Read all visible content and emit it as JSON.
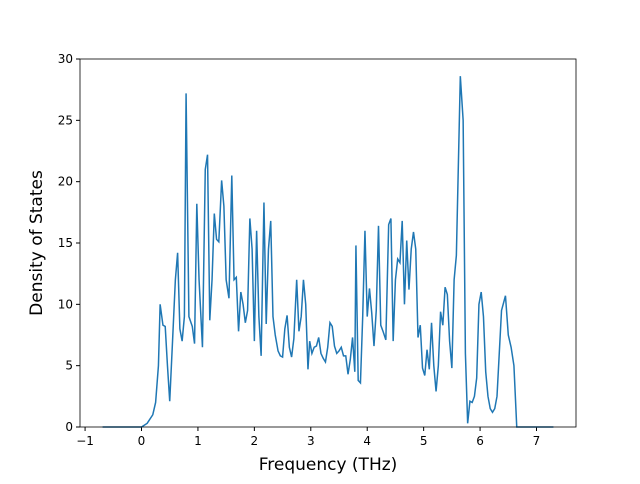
{
  "chart_data": {
    "type": "line",
    "xlabel": "Frequency (THz)",
    "ylabel": "Density of States",
    "x": [
      -0.69,
      -0.3,
      0.0,
      0.1,
      0.2,
      0.25,
      0.3,
      0.33,
      0.38,
      0.42,
      0.46,
      0.5,
      0.55,
      0.6,
      0.64,
      0.68,
      0.72,
      0.76,
      0.79,
      0.84,
      0.9,
      0.94,
      0.98,
      1.02,
      1.08,
      1.13,
      1.17,
      1.21,
      1.25,
      1.29,
      1.33,
      1.37,
      1.42,
      1.46,
      1.5,
      1.55,
      1.6,
      1.64,
      1.68,
      1.72,
      1.76,
      1.8,
      1.84,
      1.88,
      1.92,
      1.96,
      2.0,
      2.04,
      2.08,
      2.12,
      2.17,
      2.21,
      2.25,
      2.29,
      2.33,
      2.37,
      2.42,
      2.46,
      2.5,
      2.54,
      2.58,
      2.62,
      2.66,
      2.7,
      2.75,
      2.79,
      2.83,
      2.87,
      2.91,
      2.95,
      2.98,
      3.02,
      3.06,
      3.1,
      3.14,
      3.18,
      3.22,
      3.26,
      3.3,
      3.34,
      3.38,
      3.42,
      3.46,
      3.5,
      3.54,
      3.58,
      3.62,
      3.66,
      3.7,
      3.74,
      3.78,
      3.8,
      3.84,
      3.88,
      3.92,
      3.96,
      4.0,
      4.04,
      4.08,
      4.12,
      4.16,
      4.2,
      4.24,
      4.28,
      4.33,
      4.38,
      4.42,
      4.46,
      4.5,
      4.54,
      4.58,
      4.62,
      4.66,
      4.7,
      4.74,
      4.78,
      4.82,
      4.86,
      4.9,
      4.94,
      4.98,
      5.02,
      5.06,
      5.1,
      5.14,
      5.18,
      5.22,
      5.26,
      5.3,
      5.34,
      5.38,
      5.42,
      5.46,
      5.5,
      5.54,
      5.58,
      5.65,
      5.7,
      5.74,
      5.78,
      5.82,
      5.86,
      5.9,
      5.94,
      5.98,
      6.02,
      6.06,
      6.1,
      6.14,
      6.18,
      6.22,
      6.26,
      6.3,
      6.38,
      6.45,
      6.5,
      6.55,
      6.6,
      6.65,
      6.7,
      7.3
    ],
    "series": [
      {
        "color": "#1f77b4",
        "values": [
          0,
          0,
          0,
          0.3,
          1,
          2,
          5,
          10,
          8.3,
          8.2,
          5,
          2.1,
          7,
          12,
          14.2,
          8,
          7,
          9,
          27.2,
          9,
          8.2,
          6.8,
          18.2,
          12,
          6.5,
          21,
          22.2,
          8.7,
          12,
          17.4,
          15.3,
          15.1,
          20.1,
          18,
          12,
          10.5,
          20.5,
          12,
          12.2,
          7.8,
          11,
          10,
          8.5,
          9.5,
          17,
          14.5,
          7,
          16,
          9,
          5.8,
          18.3,
          8.4,
          14.5,
          16.8,
          9,
          7.5,
          6.2,
          5.8,
          5.7,
          8,
          9.1,
          6.5,
          5.7,
          7.2,
          12,
          7.8,
          9,
          12,
          10,
          4.7,
          7,
          6,
          6.5,
          6.6,
          7.3,
          6,
          5.6,
          5.3,
          6.5,
          8.5,
          8.2,
          6.6,
          6,
          6.2,
          6.5,
          5.8,
          5.8,
          4.3,
          5.5,
          7.3,
          4.5,
          14.8,
          3.8,
          3.6,
          9,
          16,
          9,
          11.3,
          9.3,
          6.6,
          9.5,
          16.4,
          8.3,
          7.8,
          7.1,
          16.5,
          17,
          7,
          12,
          13.7,
          13.4,
          16.8,
          10,
          15.2,
          11.2,
          14.5,
          15.9,
          14.5,
          7.3,
          8.3,
          4.8,
          4.2,
          6.3,
          4.7,
          8.5,
          5,
          2.9,
          5,
          9.4,
          8.3,
          11.4,
          10.8,
          7,
          4.8,
          12,
          14,
          28.6,
          25,
          6,
          0.3,
          2.1,
          2,
          2.5,
          4,
          10,
          11,
          9,
          4.5,
          2.5,
          1.5,
          1.2,
          1.5,
          2.5,
          9.5,
          10.7,
          7.5,
          6.5,
          5,
          0,
          0,
          0
        ]
      }
    ],
    "xlim": [
      -1.09,
      7.7
    ],
    "ylim": [
      0,
      30
    ],
    "xticks": [
      {
        "value": -1,
        "label": "−1"
      },
      0,
      1,
      2,
      3,
      4,
      5,
      6,
      7
    ],
    "yticks": [
      0,
      5,
      10,
      15,
      20,
      25,
      30
    ]
  }
}
